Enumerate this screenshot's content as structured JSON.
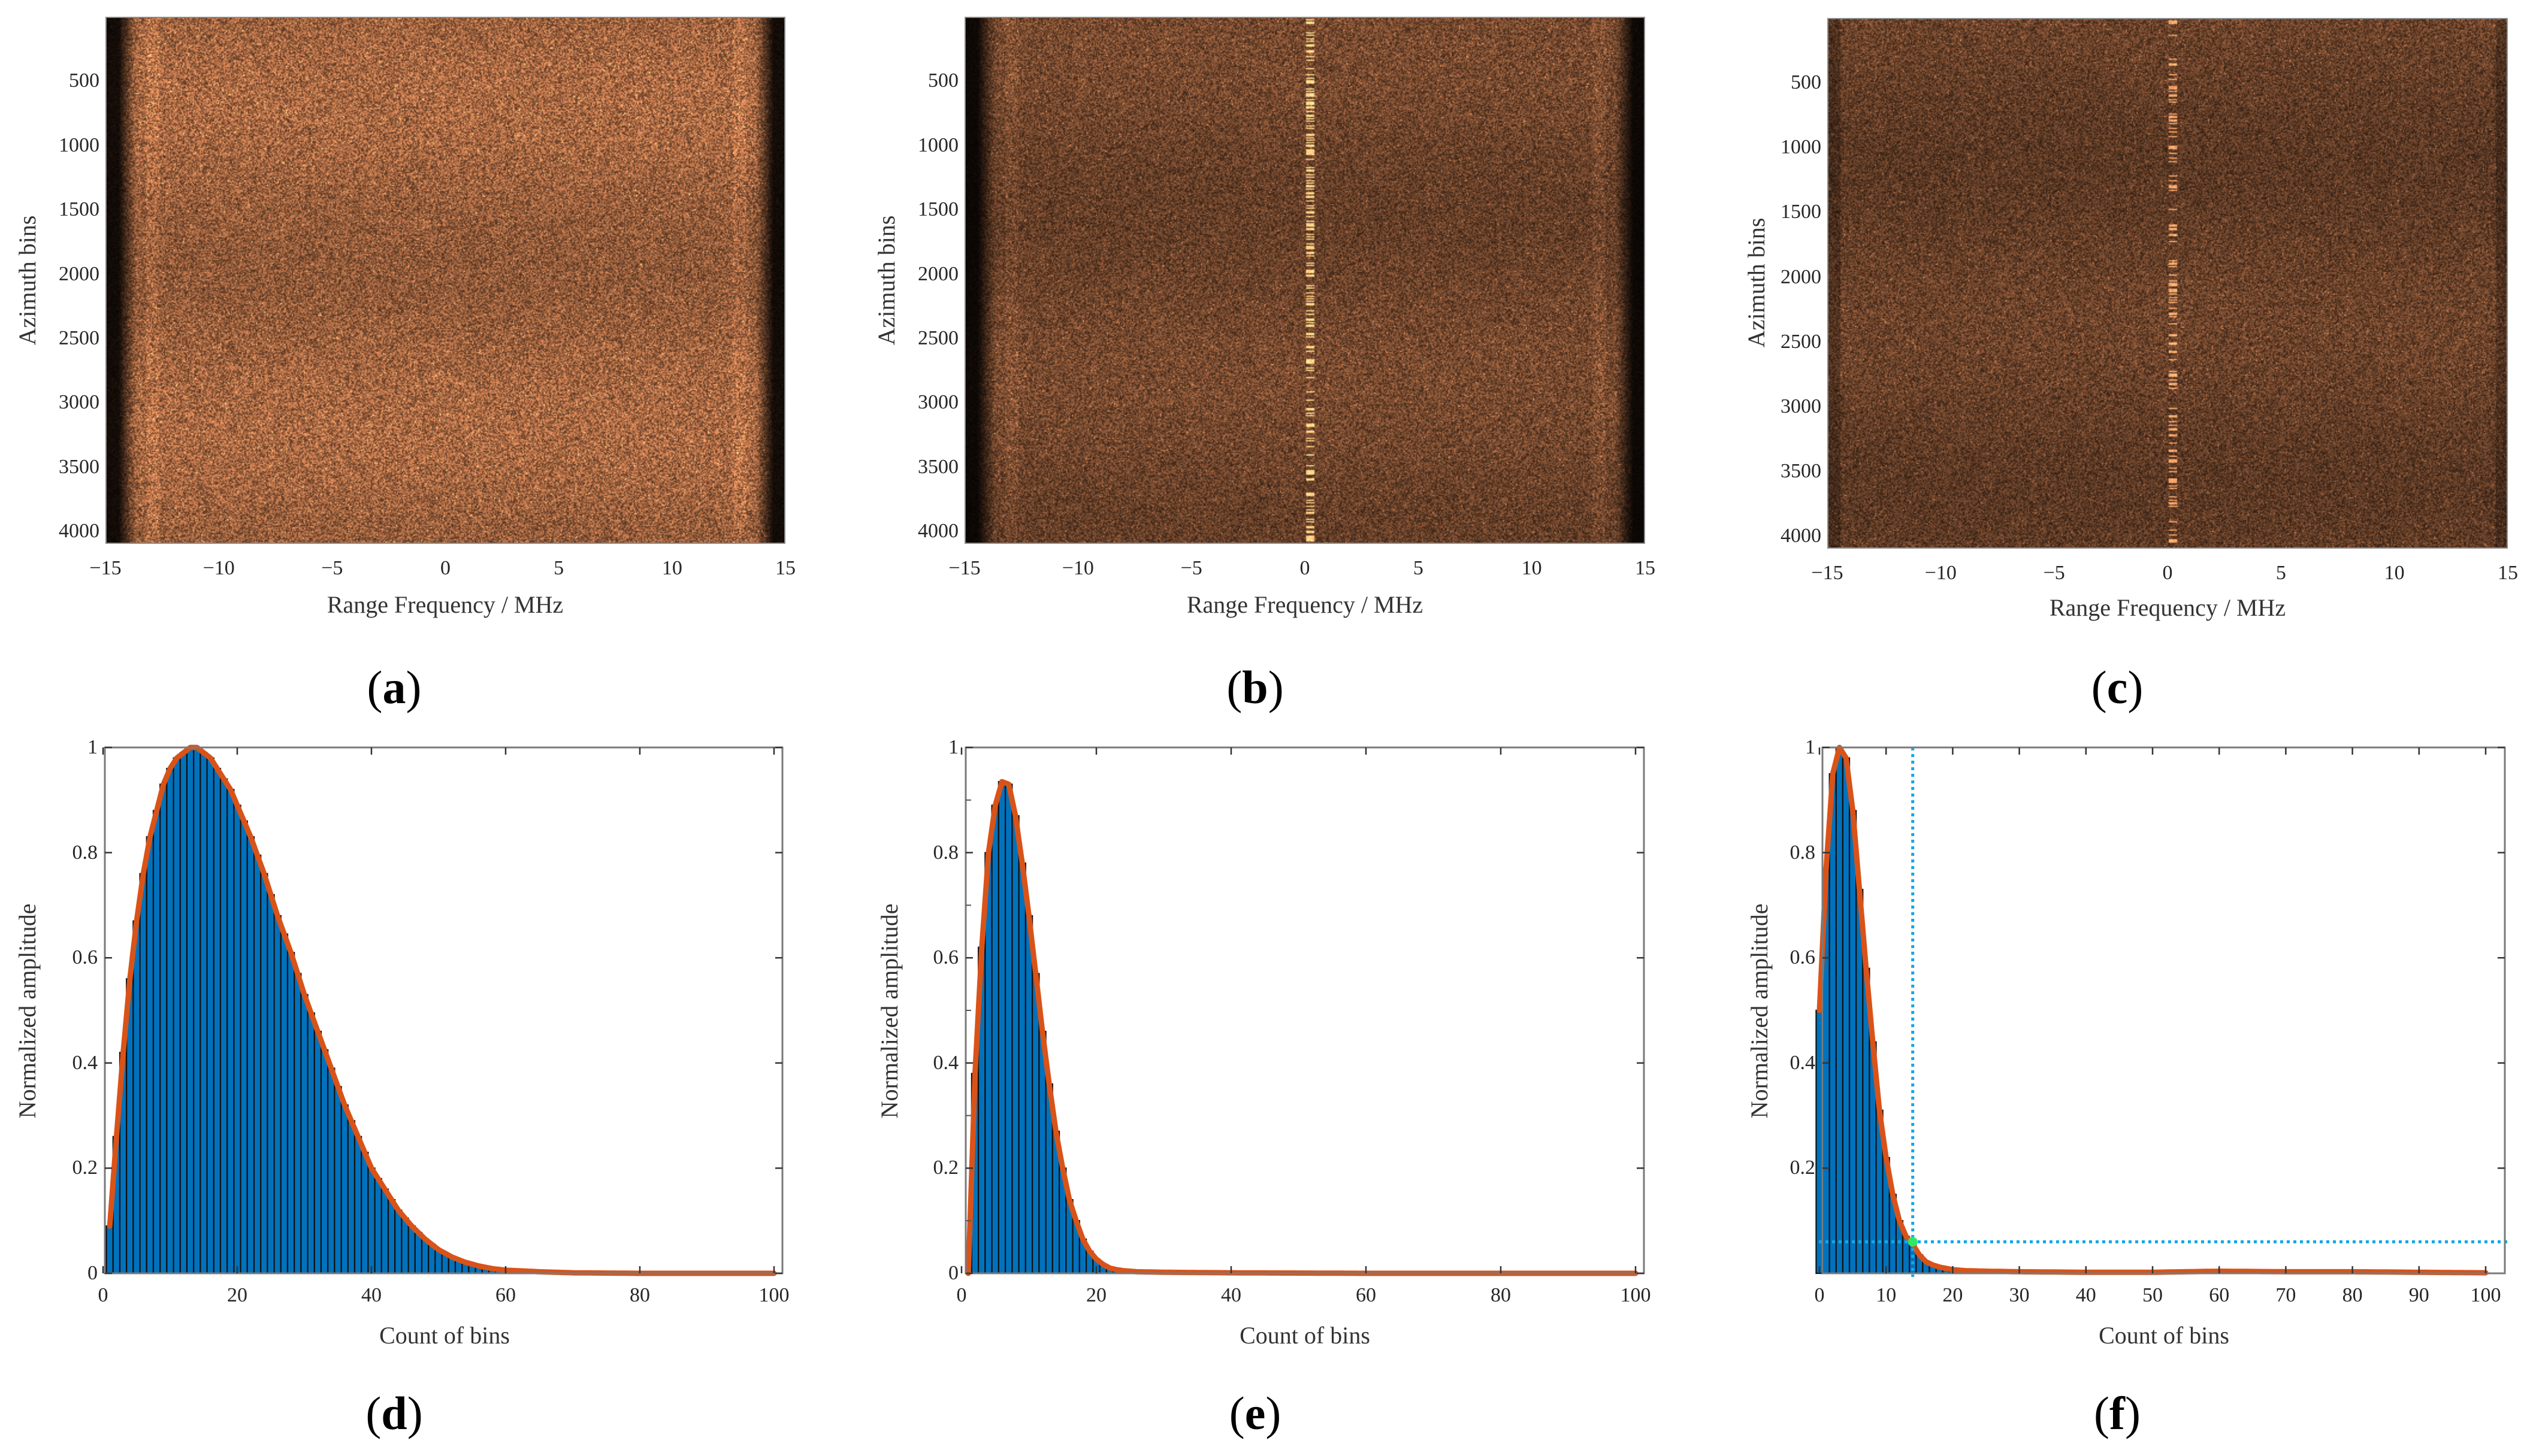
{
  "figure": {
    "captions": [
      "a",
      "b",
      "c",
      "d",
      "e",
      "f"
    ]
  },
  "colors": {
    "bar_fill": "#0072BD",
    "bar_edge": "#111111",
    "fit_line": "#D95319",
    "threshold_line": "#12A8E8",
    "threshold_point": "#2EE866",
    "axis": "#7a7a7a",
    "spectrogram_base": "#8a5a34"
  },
  "chart_data": [
    {
      "id": "a",
      "type": "heatmap",
      "title": "",
      "xlabel": "Range Frequency / MHz",
      "ylabel": "Azimuth bins",
      "xlim": [
        -15,
        15
      ],
      "ylim": [
        1,
        4096
      ],
      "y_reversed": true,
      "xticks": [
        -15,
        -10,
        -5,
        0,
        5,
        10,
        15
      ],
      "xtick_labels": [
        "−15",
        "−10",
        "−5",
        "0",
        "5",
        "10",
        "15"
      ],
      "yticks": [
        500,
        1000,
        1500,
        2000,
        2500,
        3000,
        3500,
        4000
      ],
      "ytick_labels": [
        "500",
        "1000",
        "1500",
        "2000",
        "2500",
        "3000",
        "3500",
        "4000"
      ],
      "colormap": "copper",
      "description": "Noise-like spectrum, dark bands at |f| > 13.5 MHz, bright edge lines near ±13 MHz",
      "brightness": 0.78,
      "center_line": false
    },
    {
      "id": "b",
      "type": "heatmap",
      "title": "",
      "xlabel": "Range Frequency / MHz",
      "ylabel": "Azimuth bins",
      "xlim": [
        -15,
        15
      ],
      "ylim": [
        1,
        4096
      ],
      "y_reversed": true,
      "xticks": [
        -15,
        -10,
        -5,
        0,
        5,
        10,
        15
      ],
      "xtick_labels": [
        "−15",
        "−10",
        "−5",
        "0",
        "5",
        "10",
        "15"
      ],
      "yticks": [
        500,
        1000,
        1500,
        2000,
        2500,
        3000,
        3500,
        4000
      ],
      "ytick_labels": [
        "500",
        "1000",
        "1500",
        "2000",
        "2500",
        "3000",
        "3500",
        "4000"
      ],
      "colormap": "copper",
      "description": "Darker noise spectrum with bright interference line at ~0.2 MHz, dark bands at |f| > 13.5 MHz",
      "brightness": 0.55,
      "center_line": true,
      "center_line_freq_mhz": 0.2
    },
    {
      "id": "c",
      "type": "heatmap",
      "title": "",
      "xlabel": "Range Frequency / MHz",
      "ylabel": "Azimuth bins",
      "xlim": [
        -15,
        15
      ],
      "ylim": [
        1,
        4096
      ],
      "y_reversed": true,
      "xticks": [
        -15,
        -10,
        -5,
        0,
        5,
        10,
        15
      ],
      "xtick_labels": [
        "−15",
        "−10",
        "−5",
        "0",
        "5",
        "10",
        "15"
      ],
      "yticks": [
        500,
        1000,
        1500,
        2000,
        2500,
        3000,
        3500,
        4000
      ],
      "ytick_labels": [
        "500",
        "1000",
        "1500",
        "2000",
        "2500",
        "3000",
        "3500",
        "4000"
      ],
      "colormap": "copper",
      "description": "Uniform dark noise spectrum with faint interference line at ~0.2 MHz",
      "brightness": 0.5,
      "center_line": true,
      "center_line_freq_mhz": 0.2
    },
    {
      "id": "d",
      "type": "bar",
      "title": "",
      "xlabel": "Count of bins",
      "ylabel": "Normalized amplitude",
      "xlim": [
        0,
        101
      ],
      "ylim": [
        0,
        1
      ],
      "xticks": [
        0,
        20,
        40,
        60,
        80,
        100
      ],
      "yticks": [
        0,
        0.2,
        0.4,
        0.6,
        0.8,
        1
      ],
      "ytick_labels": [
        "0",
        "0.2",
        "0.4",
        "0.6",
        "0.8",
        "1"
      ],
      "grid": false,
      "series": [
        {
          "name": "histogram",
          "type": "bar",
          "x": [
            1,
            2,
            3,
            4,
            5,
            6,
            7,
            8,
            9,
            10,
            11,
            12,
            13,
            14,
            15,
            16,
            17,
            18,
            19,
            20,
            22,
            24,
            26,
            28,
            30,
            32,
            34,
            36,
            38,
            40,
            42,
            44,
            46,
            48,
            50,
            52,
            54,
            56,
            58,
            60,
            65,
            70,
            80,
            90,
            100
          ],
          "values": [
            0.09,
            0.26,
            0.42,
            0.56,
            0.67,
            0.76,
            0.83,
            0.88,
            0.93,
            0.96,
            0.98,
            0.99,
            1.0,
            1.0,
            0.99,
            0.98,
            0.96,
            0.94,
            0.92,
            0.89,
            0.83,
            0.76,
            0.68,
            0.61,
            0.53,
            0.46,
            0.39,
            0.32,
            0.26,
            0.2,
            0.16,
            0.12,
            0.09,
            0.065,
            0.045,
            0.031,
            0.021,
            0.014,
            0.009,
            0.006,
            0.003,
            0.001,
            0.0,
            0.0,
            0.0
          ]
        },
        {
          "name": "fit",
          "type": "line",
          "peak_x": 14,
          "peak_y": 1.0
        }
      ]
    },
    {
      "id": "e",
      "type": "bar",
      "title": "",
      "xlabel": "Count of bins",
      "ylabel": "Normalized amplitude",
      "xlim": [
        0,
        101
      ],
      "ylim": [
        0,
        1
      ],
      "xticks": [
        0,
        20,
        40,
        60,
        80,
        100
      ],
      "yticks": [
        0,
        0.2,
        0.4,
        0.6,
        0.8,
        1
      ],
      "ytick_labels": [
        "0",
        "0.2",
        "0.4",
        "0.6",
        "0.8",
        "1"
      ],
      "grid": false,
      "series": [
        {
          "name": "histogram",
          "type": "bar",
          "x": [
            1,
            2,
            3,
            4,
            5,
            6,
            7,
            8,
            9,
            10,
            11,
            12,
            13,
            14,
            15,
            16,
            17,
            18,
            19,
            20,
            21,
            22,
            23,
            24,
            26,
            30,
            40,
            60,
            80,
            100
          ],
          "values": [
            0.0,
            0.38,
            0.62,
            0.8,
            0.89,
            0.935,
            0.93,
            0.87,
            0.78,
            0.68,
            0.57,
            0.46,
            0.36,
            0.27,
            0.2,
            0.14,
            0.1,
            0.065,
            0.042,
            0.027,
            0.017,
            0.01,
            0.007,
            0.005,
            0.003,
            0.002,
            0.001,
            0.0,
            0.0,
            0.0
          ]
        },
        {
          "name": "fit",
          "type": "line",
          "peak_x": 6,
          "peak_y": 0.935
        }
      ]
    },
    {
      "id": "f",
      "type": "bar",
      "title": "",
      "xlabel": "Count of bins",
      "ylabel": "Normalized amplitude",
      "xlim": [
        0,
        103
      ],
      "ylim": [
        0,
        1
      ],
      "xticks": [
        0,
        10,
        20,
        30,
        40,
        50,
        60,
        70,
        80,
        90,
        100
      ],
      "yticks": [
        0.2,
        0.4,
        0.6,
        0.8,
        1
      ],
      "ytick_labels": [
        "0.2",
        "0.4",
        "0.6",
        "0.8",
        "1"
      ],
      "grid": false,
      "series": [
        {
          "name": "histogram",
          "type": "bar",
          "x": [
            0,
            1,
            2,
            3,
            4,
            5,
            6,
            7,
            8,
            9,
            10,
            11,
            12,
            13,
            14,
            15,
            16,
            17,
            18,
            20,
            22,
            25,
            30,
            40,
            50,
            60,
            70,
            80,
            90,
            100
          ],
          "values": [
            0.5,
            0.77,
            0.95,
            1.0,
            0.98,
            0.88,
            0.73,
            0.58,
            0.44,
            0.31,
            0.22,
            0.15,
            0.1,
            0.07,
            0.055,
            0.035,
            0.022,
            0.016,
            0.012,
            0.007,
            0.005,
            0.004,
            0.003,
            0.002,
            0.002,
            0.004,
            0.003,
            0.003,
            0.002,
            0.001
          ]
        },
        {
          "name": "fit",
          "type": "line",
          "peak_x": 3,
          "peak_y": 1.0
        }
      ],
      "annotations": {
        "threshold_x": 14,
        "threshold_y": 0.06,
        "threshold_point": [
          14,
          0.06
        ],
        "line_style": "dotted"
      }
    }
  ]
}
